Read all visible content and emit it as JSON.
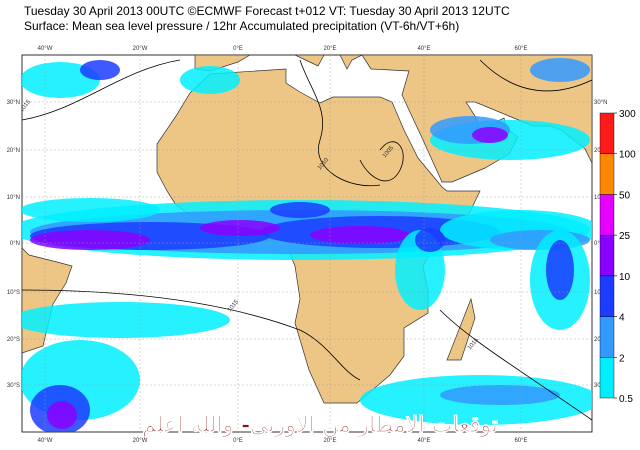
{
  "header": {
    "line1": "Tuesday 30 April 2013 00UTC ©ECMWF Forecast t+012 VT: Tuesday 30 April 2013 12UTC",
    "line2": "Surface: Mean sea level pressure / 12hr Accumulated precipitation (VT-6h/VT+6h)"
  },
  "map": {
    "longitude_labels": [
      "40°W",
      "20°W",
      "0°E",
      "20°E",
      "40°E",
      "60°E"
    ],
    "latitude_labels": [
      "30°N",
      "20°N",
      "10°N",
      "0°N",
      "10°S",
      "20°S",
      "30°S"
    ],
    "isobar_labels": [
      "1015",
      "1010",
      "1005",
      "1015",
      "1015"
    ],
    "watermark": "توقعات الامطار من الاوربي- والله اعلم"
  },
  "colorbar": {
    "levels": [
      0.5,
      2,
      4,
      10,
      25,
      50,
      100,
      300
    ],
    "colors": [
      "#00eeff",
      "#3399ff",
      "#1c3cff",
      "#8a00ff",
      "#e600ff",
      "#ff8800",
      "#ff1a1a"
    ]
  }
}
